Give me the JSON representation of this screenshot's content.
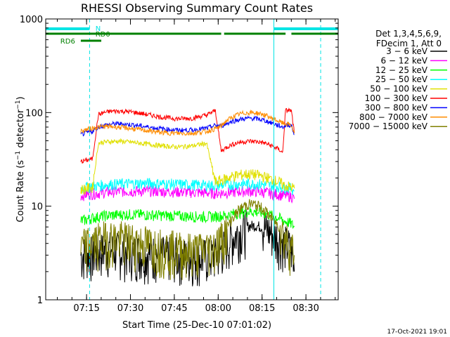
{
  "chart_data": {
    "type": "line",
    "title": "RHESSI Observing Summary Count Rates",
    "xlabel": "Start Time (25-Dec-10 07:01:02)",
    "ylabel": "Count Rate (s⁻¹ detector⁻¹)",
    "ylabel_main": "Count Rate (s",
    "ylabel_sup1": "−1",
    "ylabel_mid": " detector",
    "ylabel_sup2": "−1",
    "ylabel_end": ")",
    "xlim_minutes": [
      0,
      100
    ],
    "yscale": "log",
    "ylim": [
      1,
      1000
    ],
    "y_ticks": [
      {
        "value": 1,
        "label": "1"
      },
      {
        "value": 10,
        "label": "10"
      },
      {
        "value": 100,
        "label": "100"
      },
      {
        "value": 1000,
        "label": "1000"
      }
    ],
    "x_ticks": [
      {
        "minute": 13.97,
        "label": "07:15"
      },
      {
        "minute": 28.97,
        "label": "07:30"
      },
      {
        "minute": 43.97,
        "label": "07:45"
      },
      {
        "minute": 58.97,
        "label": "08:00"
      },
      {
        "minute": 73.97,
        "label": "08:15"
      },
      {
        "minute": 88.97,
        "label": "08:30"
      }
    ],
    "legend_header": [
      "Det 1,3,4,5,6,9,",
      "FDecim 1, Att 0"
    ],
    "series": [
      {
        "name": "3 - 6 keV",
        "label": "3 − 6 keV",
        "color": "#000000",
        "x": [
          12,
          14,
          16,
          18,
          20,
          22,
          25,
          30,
          35,
          40,
          45,
          50,
          55,
          58,
          60,
          62,
          64,
          66,
          68,
          70,
          72,
          74,
          76,
          78,
          80,
          81,
          82,
          83,
          84,
          85
        ],
        "y": [
          3,
          3.2,
          3.1,
          3.3,
          3.4,
          3.5,
          3.4,
          3.3,
          3.2,
          3.1,
          3.0,
          2.9,
          2.9,
          3.0,
          3.4,
          4.0,
          4.7,
          5.4,
          5.9,
          6.2,
          6.2,
          6.0,
          5.6,
          5.0,
          4.5,
          4.2,
          4.0,
          3.8,
          3.5,
          2.0
        ]
      },
      {
        "name": "6 - 12 keV",
        "label": "6 − 12 keV",
        "color": "#ff00ff",
        "x": [
          12,
          14,
          16,
          18,
          20,
          22,
          25,
          30,
          35,
          40,
          45,
          50,
          55,
          58,
          60,
          62,
          64,
          66,
          68,
          70,
          72,
          74,
          76,
          78,
          80,
          81,
          82,
          83,
          84,
          85
        ],
        "y": [
          13,
          13.4,
          13.6,
          13.8,
          14.0,
          14.2,
          14.4,
          14.5,
          14.6,
          14.4,
          14.3,
          14.1,
          13.9,
          13.8,
          13.9,
          14.0,
          14.2,
          14.4,
          14.5,
          14.5,
          14.4,
          14.2,
          13.9,
          13.6,
          13.3,
          13.1,
          13.0,
          12.9,
          12.8,
          12.0
        ]
      },
      {
        "name": "12 - 25 keV",
        "label": "12 − 25 keV",
        "color": "#00ff00",
        "x": [
          12,
          14,
          16,
          18,
          20,
          22,
          25,
          30,
          35,
          40,
          45,
          50,
          55,
          58,
          60,
          62,
          64,
          66,
          68,
          70,
          72,
          74,
          76,
          78,
          80,
          81,
          82,
          83,
          84,
          85
        ],
        "y": [
          7,
          7.2,
          7.5,
          7.7,
          7.9,
          8.0,
          8.1,
          8.2,
          8.1,
          8.0,
          7.9,
          7.8,
          7.7,
          7.8,
          7.9,
          8.0,
          8.3,
          8.5,
          8.7,
          8.8,
          8.7,
          8.5,
          8.2,
          7.8,
          7.4,
          7.1,
          6.9,
          6.7,
          6.5,
          6.0
        ]
      },
      {
        "name": "25 - 50 keV",
        "label": "25 − 50 keV",
        "color": "#00ffff",
        "x": [
          12,
          14,
          16,
          18,
          20,
          22,
          25,
          30,
          35,
          40,
          45,
          50,
          55,
          58,
          60,
          62,
          64,
          66,
          68,
          70,
          72,
          74,
          76,
          78,
          80,
          81,
          82,
          83,
          84,
          85
        ],
        "y": [
          15.5,
          16,
          16.3,
          16.6,
          16.9,
          17.1,
          17.3,
          17.5,
          17.6,
          17.4,
          17.2,
          17.0,
          16.8,
          16.7,
          16.8,
          16.9,
          17.1,
          17.3,
          17.4,
          17.4,
          17.3,
          17.1,
          16.8,
          16.5,
          16.2,
          16.0,
          15.9,
          15.8,
          15.6,
          14.5
        ]
      },
      {
        "name": "50 - 100 keV",
        "label": "50 − 100 keV",
        "color": "#e0e000",
        "x": [
          12,
          14,
          16,
          18,
          20,
          22,
          25,
          30,
          35,
          40,
          45,
          50,
          55,
          58,
          60,
          62,
          64,
          66,
          68,
          70,
          72,
          74,
          76,
          78,
          80,
          81,
          82,
          83,
          84,
          85
        ],
        "y": [
          15,
          15.5,
          15.8,
          47,
          48.5,
          49,
          49.5,
          48,
          46,
          44,
          43,
          44,
          47,
          18,
          19,
          20,
          21,
          21.5,
          22,
          22,
          21.6,
          21,
          20,
          19,
          18,
          17,
          16.5,
          16.2,
          16,
          15.5
        ]
      },
      {
        "name": "100 - 300 keV",
        "label": "100 − 300 keV",
        "color": "#ff0000",
        "x": [
          12,
          14,
          16,
          18,
          20,
          22,
          25,
          30,
          35,
          40,
          45,
          50,
          55,
          58,
          60,
          62,
          64,
          66,
          68,
          70,
          72,
          74,
          76,
          78,
          80,
          81,
          82,
          83,
          84,
          85
        ],
        "y": [
          30,
          31,
          32,
          95,
          100,
          103,
          104,
          101,
          95,
          89,
          86,
          87,
          94,
          105,
          39,
          43,
          46,
          48,
          49,
          49.5,
          49,
          48,
          46,
          43,
          40,
          37,
          105,
          106,
          104,
          60
        ]
      },
      {
        "name": "300 - 800 keV",
        "label": "300 − 800 keV",
        "color": "#0000ff",
        "x": [
          12,
          14,
          16,
          18,
          20,
          22,
          25,
          30,
          35,
          40,
          45,
          50,
          55,
          58,
          60,
          62,
          64,
          66,
          68,
          70,
          72,
          74,
          76,
          78,
          80,
          81,
          82,
          83,
          84,
          85
        ],
        "y": [
          58,
          61,
          63,
          70,
          73,
          75,
          76,
          74,
          70,
          67,
          65,
          65,
          68,
          73,
          72,
          77,
          81,
          84,
          86,
          87,
          86,
          84,
          80,
          76,
          72,
          70,
          73,
          74,
          73,
          58
        ]
      },
      {
        "name": "800 - 7000 keV",
        "label": "800 − 7000 keV",
        "color": "#ff8c00",
        "x": [
          12,
          14,
          16,
          18,
          20,
          22,
          25,
          30,
          35,
          40,
          45,
          50,
          55,
          58,
          60,
          62,
          64,
          66,
          68,
          70,
          72,
          74,
          76,
          78,
          80,
          81,
          82,
          83,
          84,
          85
        ],
        "y": [
          63,
          66,
          68,
          70,
          71,
          71,
          70,
          67,
          64,
          61,
          60,
          60,
          63,
          67,
          72,
          83,
          90,
          96,
          99,
          100,
          99,
          96,
          91,
          85,
          80,
          77,
          76,
          75,
          73,
          60
        ]
      },
      {
        "name": "7000 - 15000 keV",
        "label": "7000 − 15000 keV",
        "color": "#808000",
        "x": [
          12,
          14,
          16,
          18,
          20,
          22,
          25,
          30,
          35,
          40,
          45,
          50,
          55,
          58,
          60,
          62,
          64,
          66,
          68,
          70,
          72,
          74,
          76,
          78,
          80,
          81,
          82,
          83,
          84,
          85
        ],
        "y": [
          3.6,
          3.9,
          4.1,
          4.3,
          4.5,
          4.6,
          4.5,
          4.3,
          4.0,
          3.7,
          3.5,
          3.4,
          3.5,
          3.9,
          4.5,
          6.0,
          7.6,
          9.0,
          10.2,
          10.6,
          10.3,
          9.5,
          8.3,
          7.0,
          6.0,
          5.2,
          4.6,
          4.2,
          3.8,
          3.0
        ]
      }
    ],
    "annotations": {
      "n_label": "N",
      "rd0_label": "RD0",
      "rd6_label": "RD6",
      "cyan_bars": [
        [
          0,
          15
        ],
        [
          78,
          100
        ]
      ],
      "green_rd0_bars": [
        [
          0,
          60
        ],
        [
          61,
          82
        ],
        [
          84,
          100
        ]
      ],
      "green_rd6_bars": [
        [
          12,
          19
        ]
      ],
      "solid_vlines": [
        0,
        78
      ],
      "dashed_vlines": [
        15,
        94
      ]
    },
    "timestamp": "17-Oct-2021 19:01"
  }
}
